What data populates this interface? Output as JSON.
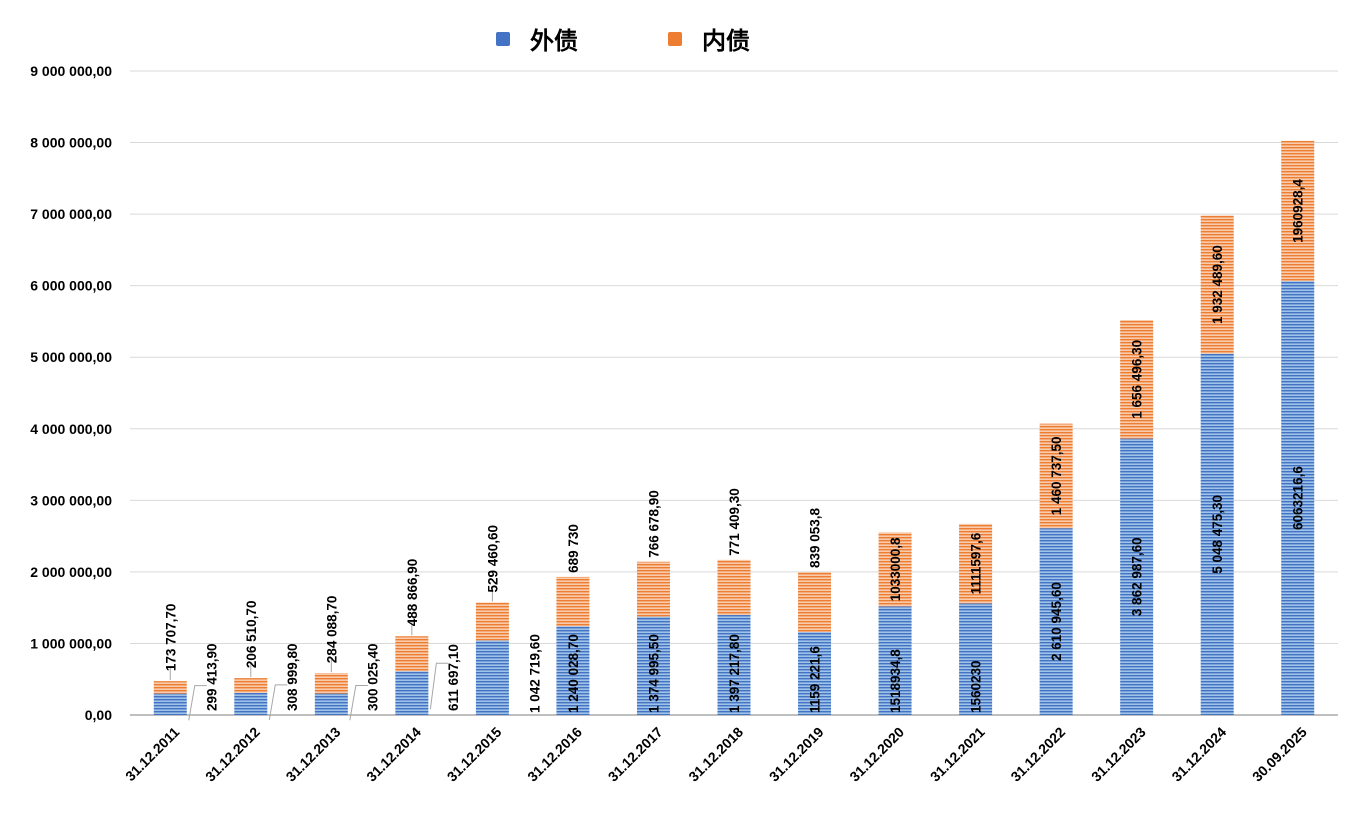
{
  "chart_data": {
    "type": "bar",
    "stacked": true,
    "categories": [
      "31.12.2011",
      "31.12.2012",
      "31.12.2013",
      "31.12.2014",
      "31.12.2015",
      "31.12.2016",
      "31.12.2017",
      "31.12.2018",
      "31.12.2019",
      "31.12.2020",
      "31.12.2021",
      "31.12.2022",
      "31.12.2023",
      "31.12.2024",
      "30.09.2025"
    ],
    "series": [
      {
        "name": "外债",
        "color": "#4472C4",
        "values": [
          299413.9,
          308999.8,
          300025.4,
          611697.1,
          1042719.6,
          1240028.7,
          1374995.5,
          1397217.8,
          1159221.6,
          1518934.8,
          1560230,
          2610945.6,
          3862987.6,
          5048475.3,
          6063216.6
        ],
        "labels": [
          "299 413,90",
          "308 999,80",
          "300 025,40",
          "611 697,10",
          "1 042 719,60",
          "1 240 028,70",
          "1 374 995,50",
          "1 397 217,80",
          "1159 221,6",
          "1518934,8",
          "1560230",
          "2 610 945,60",
          "3 862 987,60",
          "5 048 475,30",
          "6063216,6"
        ]
      },
      {
        "name": "内债",
        "color": "#ED7D31",
        "values": [
          173707.7,
          206510.7,
          284088.7,
          488866.9,
          529460.6,
          689730,
          766678.9,
          771409.3,
          839053.8,
          1033000.8,
          1111597.6,
          1460737.5,
          1656496.3,
          1932489.6,
          1960928.4
        ],
        "labels": [
          "173 707,70",
          "206 510,70",
          "284 088,70",
          "488 866,90",
          "529 460,60",
          "689 730",
          "766 678,90",
          "771 409,30",
          "839 053,8",
          "1033000,8",
          "1111597,6",
          "1 460 737,50",
          "1 656 496,30",
          "1 932 489,60",
          "1960928,4"
        ]
      }
    ],
    "ylim": [
      0,
      9000000
    ],
    "yticks": [
      0,
      1000000,
      2000000,
      3000000,
      4000000,
      5000000,
      6000000,
      7000000,
      8000000,
      9000000
    ],
    "ytick_labels": [
      "0,00",
      "1 000 000,00",
      "2 000 000,00",
      "3 000 000,00",
      "4 000 000,00",
      "5 000 000,00",
      "6 000 000,00",
      "7 000 000,00",
      "8 000 000,00",
      "9 000 000,00"
    ],
    "grid": true,
    "legend_position": "top-center"
  }
}
